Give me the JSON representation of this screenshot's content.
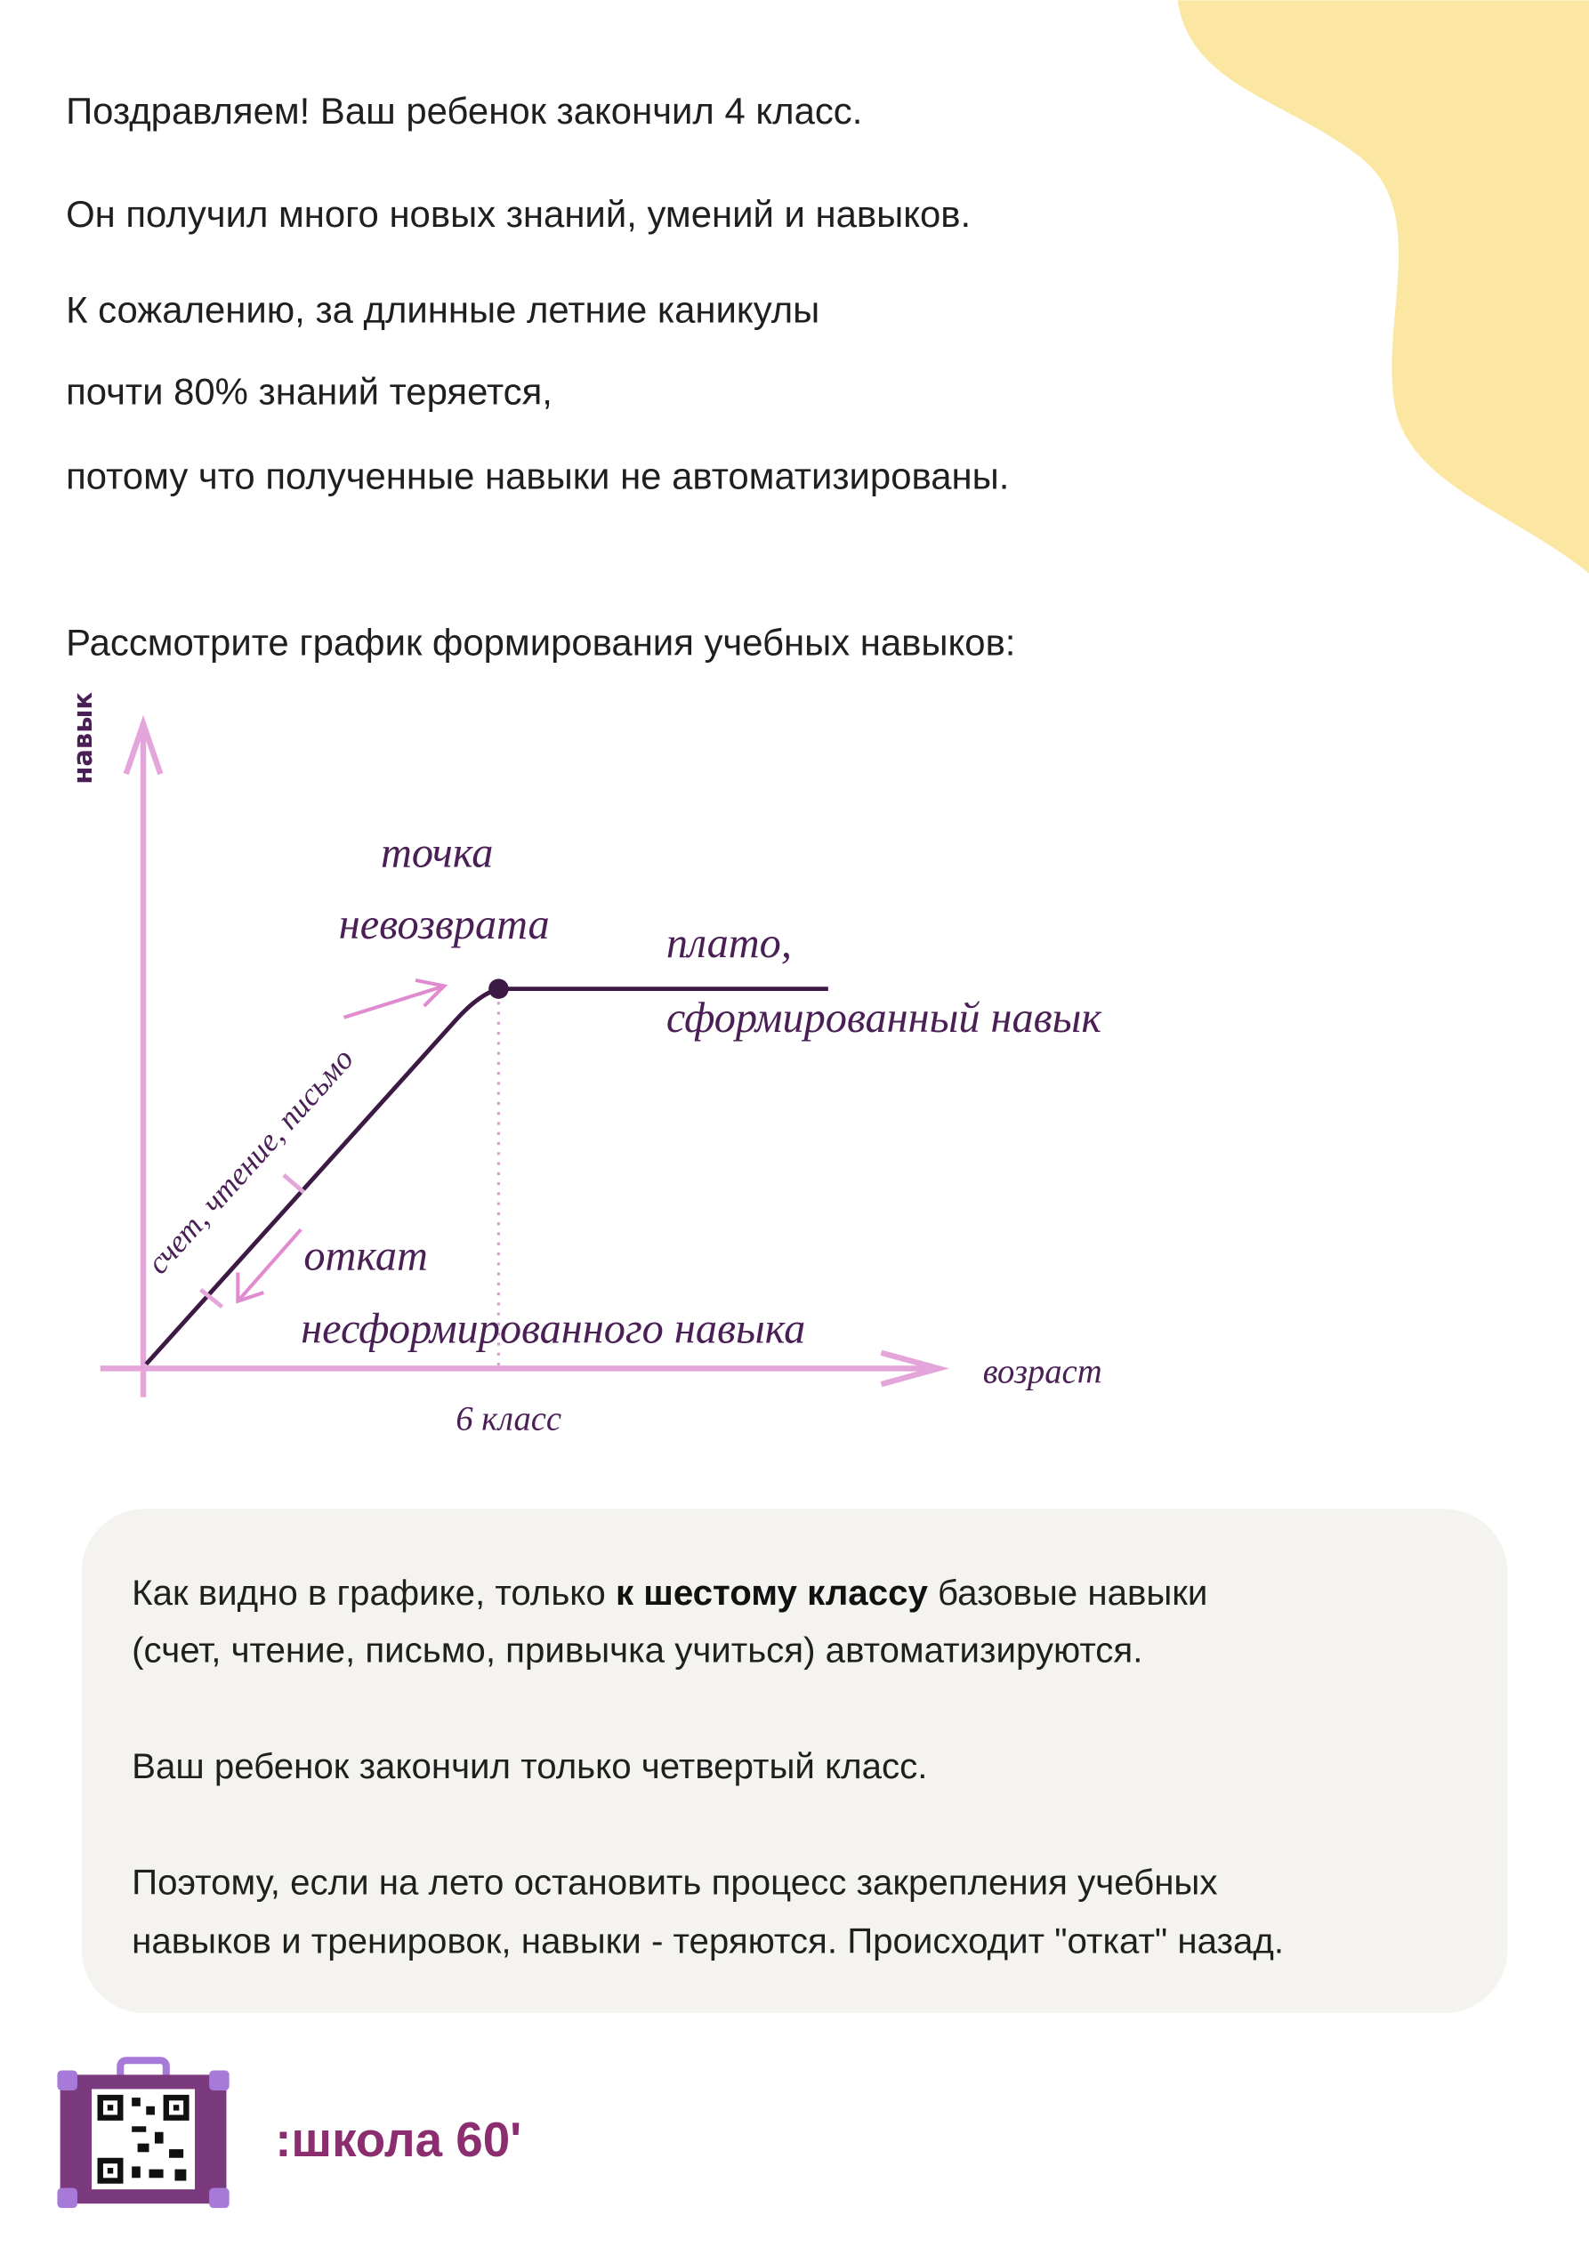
{
  "intro": {
    "lines": [
      "Поздравляем! Ваш ребенок закончил 4 класс.",
      "Он получил много новых знаний, умений и навыков.",
      "К сожалению, за длинные летние каникулы",
      "почти 80% знаний теряется,",
      "потому что полученные навыки не автоматизированы."
    ]
  },
  "prompt": "Рассмотрите график формирования учебных навыков:",
  "diagram": {
    "y_axis_label": "навык",
    "x_axis_label": "возраст",
    "x_marker": "6 класс",
    "point_label": [
      "точка",
      "невозврата"
    ],
    "plateau_label": [
      "плато,",
      "сформированный навык"
    ],
    "slope_label": "счет, чтение, письмо",
    "rollback_label": [
      "откат",
      "несформированного навыка"
    ]
  },
  "callout": {
    "p1": {
      "line1": [
        "Как видно в графике, только",
        "к шестому классу",
        "базовые навыки"
      ],
      "line2": "(счет, чтение, письмо, привычка учиться) автоматизируются."
    },
    "p2": "Ваш ребенок закончил только четвертый класс.",
    "p3": [
      "Поэтому, если на лето остановить процесс закрепления учебных",
      "навыков и тренировок, навыки - теряются. Происходит \"откат\" назад."
    ]
  },
  "footer": {
    "logo": ":школа 60'"
  }
}
